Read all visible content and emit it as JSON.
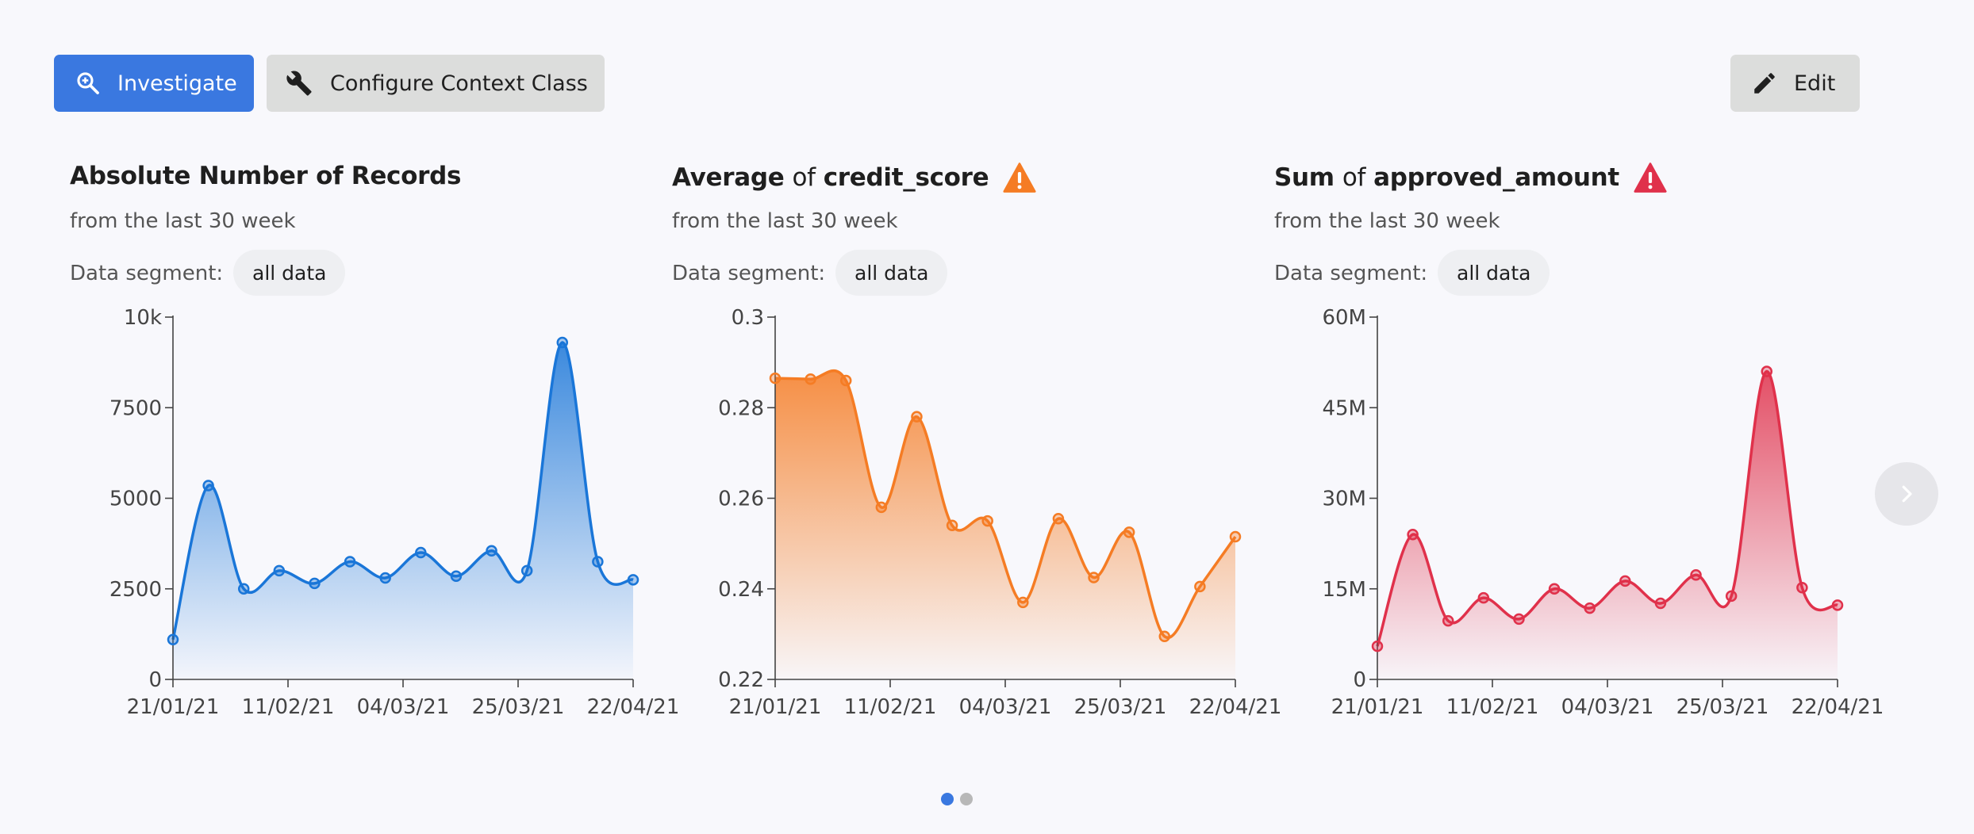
{
  "toolbar": {
    "investigate_label": "Investigate",
    "configure_label": "Configure Context Class",
    "edit_label": "Edit"
  },
  "segment_label": "Data segment:",
  "cards": [
    {
      "title_parts": [
        "Absolute Number of Records"
      ],
      "subtitle": "from the last 30 week",
      "segment_value": "all data",
      "warning": null
    },
    {
      "title_parts": [
        "Average",
        "of",
        "credit_score"
      ],
      "subtitle": "from the last 30 week",
      "segment_value": "all data",
      "warning": "#f57c24"
    },
    {
      "title_parts": [
        "Sum",
        "of",
        "approved_amount"
      ],
      "subtitle": "from the last 30 week",
      "segment_value": "all data",
      "warning": "#e0314b"
    }
  ],
  "colors": {
    "primary": "#3a78e0",
    "blue": "#1a76d8",
    "orange": "#f57c24",
    "red": "#e0314b"
  },
  "chart_data": [
    {
      "type": "area",
      "title": "Absolute Number of Records",
      "color": "#1a76d8",
      "x_ticks": [
        "21/01/21",
        "11/02/21",
        "04/03/21",
        "25/03/21",
        "22/04/21"
      ],
      "y_ticks": [
        0,
        2500,
        5000,
        7500,
        10000
      ],
      "y_tick_labels": [
        "0",
        "2500",
        "5000",
        "7500",
        "10k"
      ],
      "ylim": [
        0,
        10000
      ],
      "values": [
        1100,
        5350,
        2500,
        3000,
        2650,
        3250,
        2800,
        3500,
        2850,
        3550,
        3000,
        9300,
        3250,
        2750
      ]
    },
    {
      "type": "area",
      "title": "Average of credit_score",
      "color": "#f57c24",
      "x_ticks": [
        "21/01/21",
        "11/02/21",
        "04/03/21",
        "25/03/21",
        "22/04/21"
      ],
      "y_ticks": [
        0.22,
        0.24,
        0.26,
        0.28,
        0.3
      ],
      "y_tick_labels": [
        "0.22",
        "0.24",
        "0.26",
        "0.28",
        "0.3"
      ],
      "ylim": [
        0.22,
        0.3
      ],
      "values": [
        0.2865,
        0.2863,
        0.286,
        0.258,
        0.278,
        0.254,
        0.255,
        0.237,
        0.2555,
        0.2425,
        0.2525,
        0.2295,
        0.2405,
        0.2515
      ]
    },
    {
      "type": "area",
      "title": "Sum of approved_amount",
      "color": "#e0314b",
      "x_ticks": [
        "21/01/21",
        "11/02/21",
        "04/03/21",
        "25/03/21",
        "22/04/21"
      ],
      "y_ticks": [
        0,
        15000000,
        30000000,
        45000000,
        60000000
      ],
      "y_tick_labels": [
        "0",
        "15M",
        "30M",
        "45M",
        "60M"
      ],
      "ylim": [
        0,
        60000000
      ],
      "values": [
        5500000,
        24000000,
        9700000,
        13500000,
        10000000,
        15000000,
        11800000,
        16300000,
        12600000,
        17300000,
        13800000,
        51000000,
        15200000,
        12300000
      ]
    }
  ],
  "pagination": {
    "pages": 2,
    "current": 0
  }
}
